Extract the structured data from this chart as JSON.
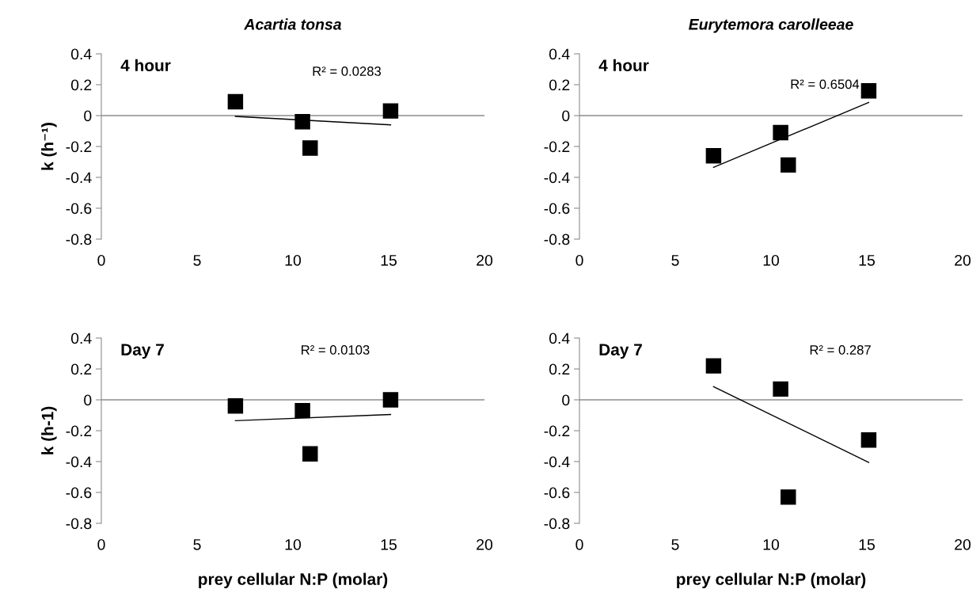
{
  "chart_data": [
    {
      "type": "scatter",
      "title": "Acartia tonsa",
      "ylabel": "k (h⁻¹)",
      "annotations": [
        "4 hour",
        "R² = 0.0283"
      ],
      "ref_lines": [
        {
          "axis": "y",
          "value": 0,
          "color": "#8c8c8c"
        }
      ],
      "xlim": [
        0,
        20
      ],
      "xticks": [
        0,
        5,
        10,
        15,
        20
      ],
      "ylim": [
        -0.8,
        0.4
      ],
      "yticks": [
        -0.8,
        -0.6,
        -0.4,
        -0.2,
        0,
        0.2,
        0.4
      ],
      "grid": false,
      "legend": false,
      "marker": "square",
      "series": [
        {
          "color": "#000000",
          "x": [
            7,
            10.5,
            10.9,
            15.1
          ],
          "values": [
            0.09,
            -0.04,
            -0.21,
            0.03
          ]
        },
        {
          "type": "line",
          "color": "#000000",
          "line_style": "solid",
          "marker": "none",
          "x": [
            7,
            15.1
          ],
          "values": [
            -0.005,
            -0.06
          ]
        }
      ]
    },
    {
      "type": "scatter",
      "title": "Eurytemora carolleeae",
      "annotations": [
        "4 hour",
        "R² = 0.6504"
      ],
      "ref_lines": [
        {
          "axis": "y",
          "value": 0,
          "color": "#8c8c8c"
        }
      ],
      "xlim": [
        0,
        20
      ],
      "xticks": [
        0,
        5,
        10,
        15,
        20
      ],
      "ylim": [
        -0.8,
        0.4
      ],
      "yticks": [
        -0.8,
        -0.6,
        -0.4,
        -0.2,
        0,
        0.2,
        0.4
      ],
      "grid": false,
      "legend": false,
      "marker": "square",
      "series": [
        {
          "color": "#000000",
          "x": [
            7,
            10.5,
            10.9,
            15.1
          ],
          "values": [
            -0.26,
            -0.11,
            -0.32,
            0.16
          ]
        },
        {
          "type": "line",
          "color": "#000000",
          "line_style": "solid",
          "marker": "none",
          "x": [
            7,
            15.1
          ],
          "values": [
            -0.335,
            0.085
          ]
        }
      ]
    },
    {
      "type": "scatter",
      "xlabel": "prey cellular N:P (molar)",
      "ylabel": "k (h-1)",
      "annotations": [
        "Day 7",
        "R² = 0.0103"
      ],
      "ref_lines": [
        {
          "axis": "y",
          "value": 0,
          "color": "#8c8c8c"
        }
      ],
      "xlim": [
        0,
        20
      ],
      "xticks": [
        0,
        5,
        10,
        15,
        20
      ],
      "ylim": [
        -0.8,
        0.4
      ],
      "yticks": [
        -0.8,
        -0.6,
        -0.4,
        -0.2,
        0,
        0.2,
        0.4
      ],
      "grid": false,
      "legend": false,
      "marker": "square",
      "series": [
        {
          "color": "#000000",
          "x": [
            7,
            10.5,
            10.9,
            15.1
          ],
          "values": [
            -0.04,
            -0.07,
            -0.35,
            0.0
          ]
        },
        {
          "type": "line",
          "color": "#000000",
          "line_style": "solid",
          "marker": "none",
          "x": [
            7,
            15.1
          ],
          "values": [
            -0.135,
            -0.095
          ]
        }
      ]
    },
    {
      "type": "scatter",
      "xlabel": "prey cellular N:P (molar)",
      "annotations": [
        "Day 7",
        "R² = 0.287"
      ],
      "ref_lines": [
        {
          "axis": "y",
          "value": 0,
          "color": "#8c8c8c"
        }
      ],
      "xlim": [
        0,
        20
      ],
      "xticks": [
        0,
        5,
        10,
        15,
        20
      ],
      "ylim": [
        -0.8,
        0.4
      ],
      "yticks": [
        -0.8,
        -0.6,
        -0.4,
        -0.2,
        0,
        0.2,
        0.4
      ],
      "grid": false,
      "legend": false,
      "marker": "square",
      "series": [
        {
          "color": "#000000",
          "x": [
            7,
            10.5,
            10.9,
            15.1
          ],
          "values": [
            0.22,
            0.07,
            -0.63,
            -0.26
          ]
        },
        {
          "type": "line",
          "color": "#000000",
          "line_style": "solid",
          "marker": "none",
          "x": [
            7,
            15.1
          ],
          "values": [
            0.085,
            -0.405
          ]
        }
      ]
    }
  ]
}
